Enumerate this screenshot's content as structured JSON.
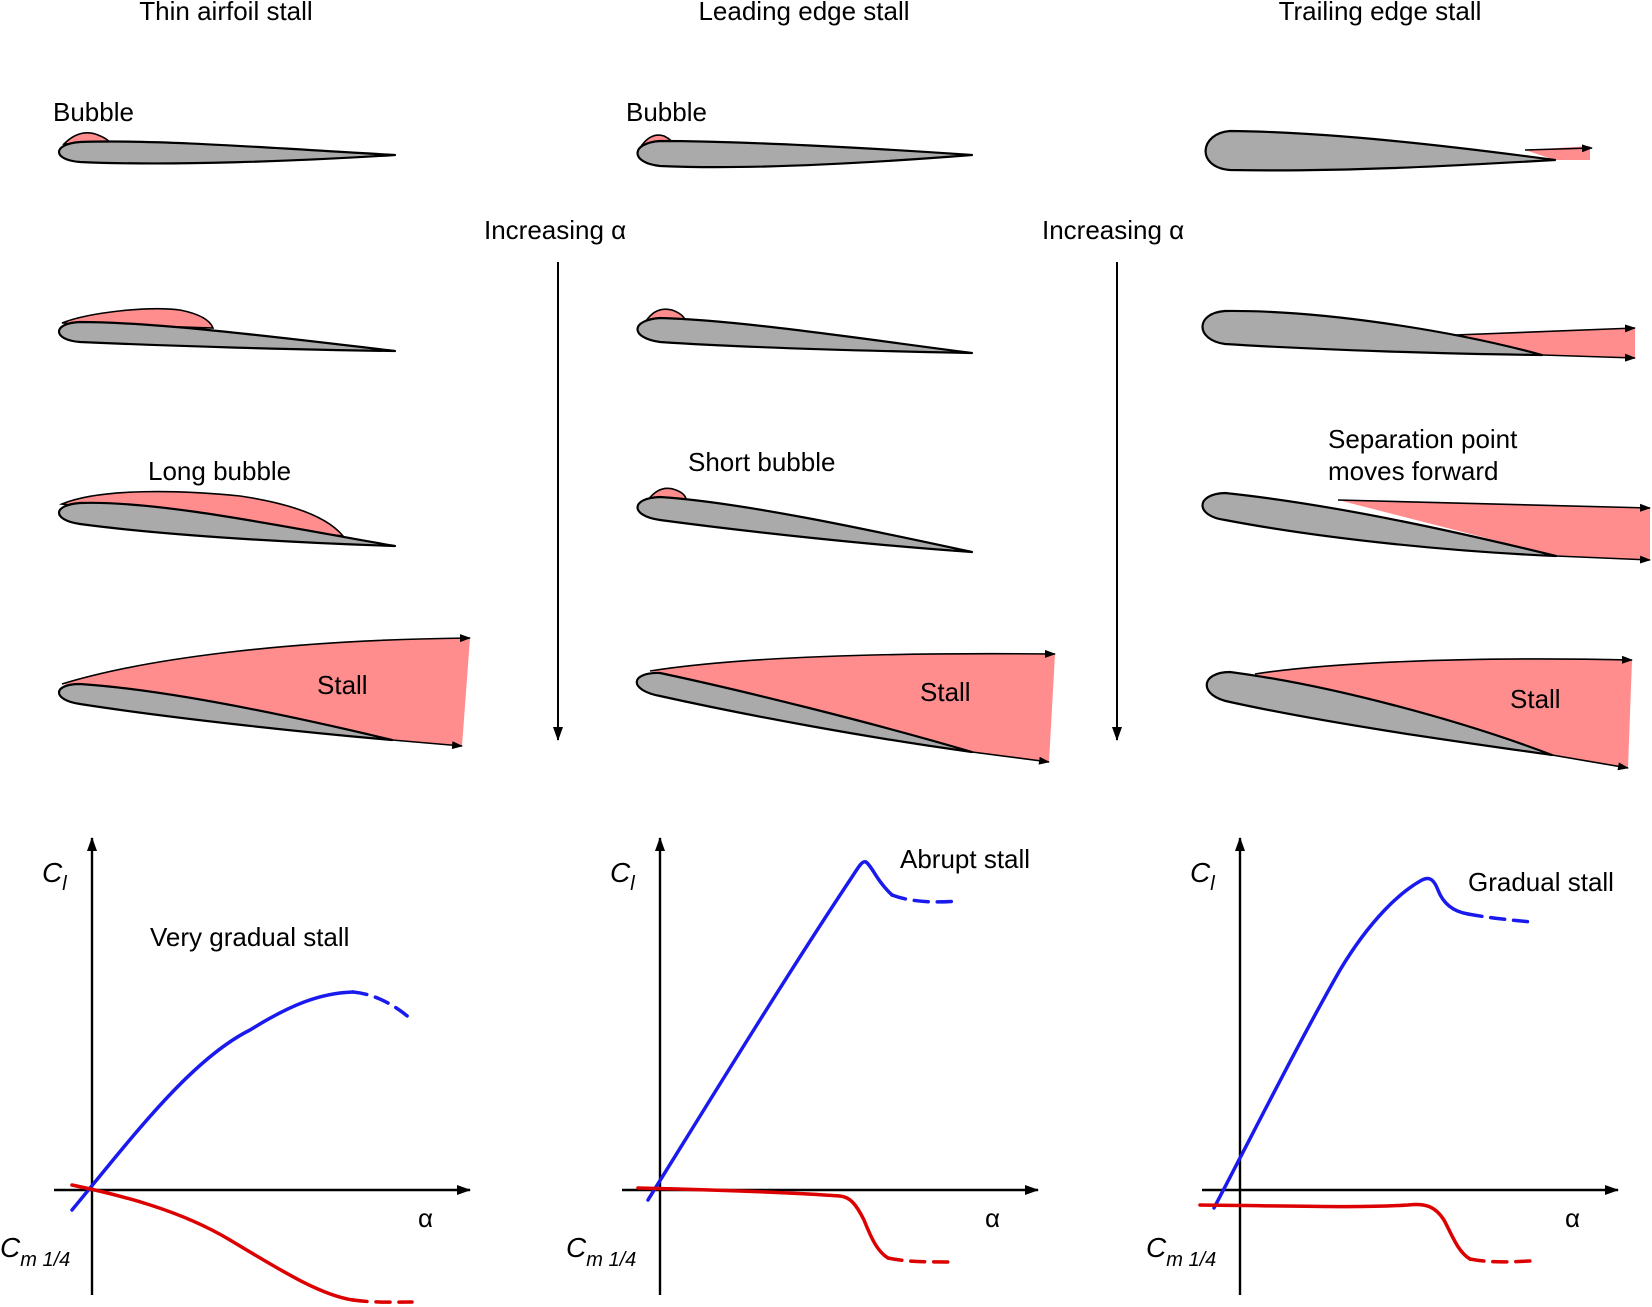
{
  "columns": [
    {
      "title": "Thin airfoil stall"
    },
    {
      "title": "Leading edge stall"
    },
    {
      "title": "Trailing edge stall"
    }
  ],
  "labels": {
    "bubble_1": "Bubble",
    "bubble_2": "Bubble",
    "increasing_1": "Increasing α",
    "increasing_2": "Increasing α",
    "long_bubble": "Long bubble",
    "short_bubble": "Short bubble",
    "separation_line1": "Separation point",
    "separation_line2": "moves forward",
    "stall_1": "Stall",
    "stall_2": "Stall",
    "stall_3": "Stall"
  },
  "plots": [
    {
      "ylabel_main": "C",
      "ylabel_sub": "l",
      "cm_main": "C",
      "cm_sub": "m 1/4",
      "xlabel": "α",
      "annotation": "Very gradual stall"
    },
    {
      "ylabel_main": "C",
      "ylabel_sub": "l",
      "cm_main": "C",
      "cm_sub": "m 1/4",
      "xlabel": "α",
      "annotation": "Abrupt stall"
    },
    {
      "ylabel_main": "C",
      "ylabel_sub": "l",
      "cm_main": "C",
      "cm_sub": "m 1/4",
      "xlabel": "α",
      "annotation": "Gradual stall"
    }
  ],
  "colors": {
    "airfoil": "#aaaaaa",
    "separated_flow": "#ff8d8d",
    "lift_curve": "#1a1aee",
    "moment_curve": "#dd0000"
  }
}
